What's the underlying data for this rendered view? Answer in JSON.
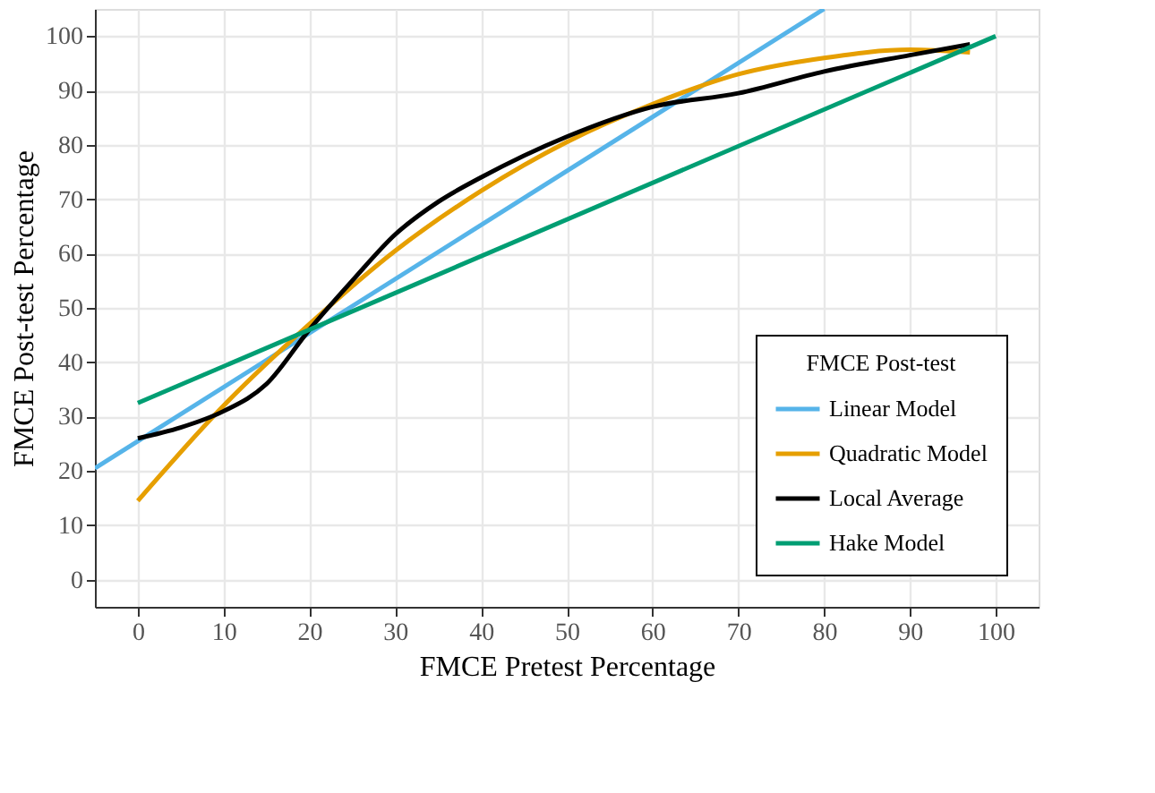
{
  "chart_data": {
    "type": "line",
    "xlabel": "FMCE Pretest Percentage",
    "ylabel": "FMCE Post-test Percentage",
    "legend_title": "FMCE Post-test",
    "series": [
      {
        "name": "Linear Model",
        "color": "#56b4e9",
        "x": [
          -5,
          80
        ],
        "values": [
          20.5,
          105
        ]
      },
      {
        "name": "Quadratic Model",
        "color": "#e69f00",
        "x": [
          0,
          10,
          20,
          30,
          40,
          50,
          60,
          70,
          80,
          90,
          97
        ],
        "values": [
          14.5,
          32,
          47,
          60.5,
          71.5,
          80.5,
          87.5,
          93,
          96,
          97.5,
          97
        ]
      },
      {
        "name": "Local Average",
        "color": "#000000",
        "x": [
          0,
          5,
          10,
          15,
          20,
          25,
          30,
          35,
          40,
          50,
          60,
          70,
          80,
          90,
          97
        ],
        "values": [
          26,
          28,
          31,
          36,
          46,
          55,
          63.5,
          69.5,
          74,
          81.5,
          87,
          89.5,
          93.5,
          96.5,
          98.5
        ]
      },
      {
        "name": "Hake Model",
        "color": "#009e73",
        "x": [
          0,
          100
        ],
        "values": [
          32.5,
          100
        ]
      }
    ],
    "xlim": [
      -5,
      105
    ],
    "ylim": [
      -5,
      105
    ],
    "xticks": [
      0,
      10,
      20,
      30,
      40,
      50,
      60,
      70,
      80,
      90,
      100
    ],
    "yticks": [
      0,
      10,
      20,
      30,
      40,
      50,
      60,
      70,
      80,
      90,
      100
    ],
    "grid": true,
    "legend": "bottom right",
    "line_style": "solid",
    "marker": "none"
  }
}
